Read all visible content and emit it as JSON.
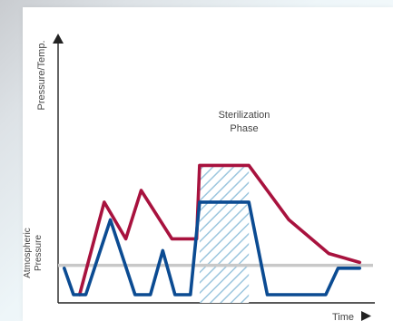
{
  "chart_data": {
    "type": "line",
    "title": "",
    "xlabel": "Time",
    "ylabel": "Pressure/Temp.",
    "reference_line": {
      "label_lines": [
        "Atmospheric",
        "Pressure"
      ],
      "y": 20,
      "color": "#c8c8c8"
    },
    "annotation": {
      "label_lines": [
        "Sterilization",
        "Phase"
      ],
      "x_start": 46,
      "x_end": 62,
      "hatch_color": "#9cc6de"
    },
    "series": [
      {
        "color": "#a8123e",
        "x": [
          7,
          15,
          22,
          27,
          37,
          45,
          46,
          62,
          75,
          88,
          98
        ],
        "y": [
          0,
          63,
          38,
          71,
          38,
          38,
          88,
          88,
          51,
          28,
          22
        ]
      },
      {
        "color": "#0b4b92",
        "x": [
          2,
          5,
          9,
          17,
          25,
          30,
          34,
          38,
          43,
          46,
          62,
          68,
          80,
          87,
          91,
          98
        ],
        "y": [
          18,
          0,
          0,
          51,
          0,
          0,
          30,
          0,
          0,
          63,
          63,
          0,
          0,
          0,
          18,
          18
        ]
      }
    ],
    "xlim": [
      0,
      100
    ],
    "ylim": [
      0,
      100
    ],
    "grid": false,
    "legend": "none"
  }
}
